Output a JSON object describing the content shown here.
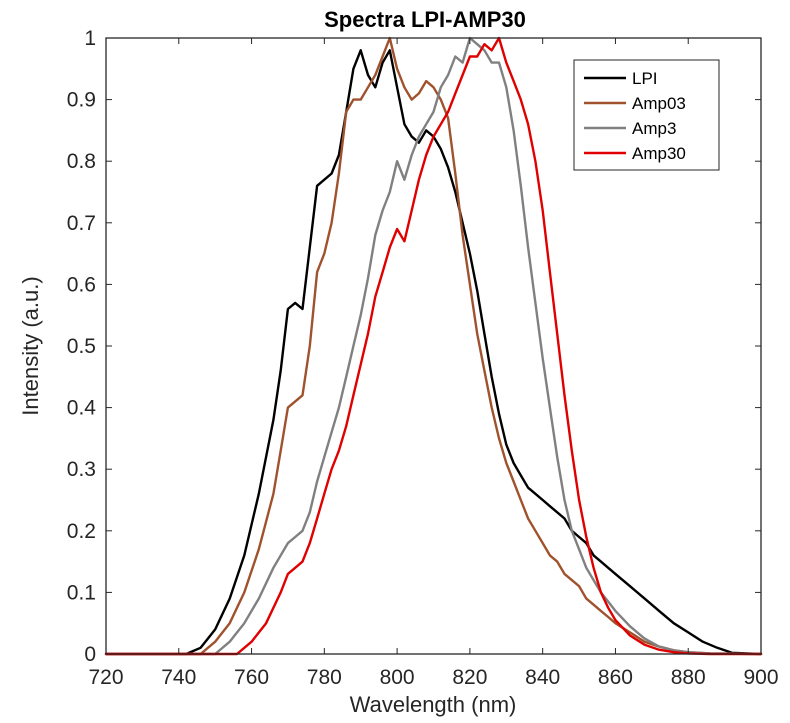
{
  "chart_data": {
    "type": "line",
    "title": "Spectra LPI-AMP30",
    "xlabel": "Wavelength (nm)",
    "ylabel": "Intensity (a.u.)",
    "xlim": [
      720,
      900
    ],
    "ylim": [
      0,
      1
    ],
    "xticks": [
      "720",
      "740",
      "760",
      "780",
      "800",
      "820",
      "840",
      "860",
      "880",
      "900"
    ],
    "yticks": [
      "0",
      "0.1",
      "0.2",
      "0.3",
      "0.4",
      "0.5",
      "0.6",
      "0.7",
      "0.8",
      "0.9",
      "1"
    ],
    "grid": false,
    "legend_position": "top-right",
    "series": [
      {
        "name": "LPI",
        "color": "#000000",
        "x": [
          720,
          742,
          746,
          750,
          754,
          758,
          762,
          766,
          768,
          770,
          772,
          774,
          776,
          778,
          780,
          782,
          784,
          786,
          788,
          790,
          792,
          794,
          796,
          798,
          800,
          802,
          804,
          806,
          808,
          810,
          812,
          814,
          816,
          818,
          820,
          822,
          824,
          826,
          828,
          830,
          832,
          834,
          836,
          838,
          840,
          842,
          844,
          846,
          848,
          850,
          852,
          854,
          856,
          858,
          860,
          864,
          868,
          872,
          876,
          880,
          884,
          888,
          892,
          900
        ],
        "y": [
          0,
          0,
          0.01,
          0.04,
          0.09,
          0.16,
          0.26,
          0.38,
          0.46,
          0.56,
          0.57,
          0.56,
          0.66,
          0.76,
          0.77,
          0.78,
          0.81,
          0.88,
          0.95,
          0.98,
          0.94,
          0.92,
          0.96,
          0.98,
          0.92,
          0.86,
          0.84,
          0.83,
          0.85,
          0.84,
          0.82,
          0.79,
          0.75,
          0.7,
          0.65,
          0.59,
          0.52,
          0.45,
          0.39,
          0.34,
          0.31,
          0.29,
          0.27,
          0.26,
          0.25,
          0.24,
          0.23,
          0.22,
          0.2,
          0.19,
          0.18,
          0.16,
          0.15,
          0.14,
          0.13,
          0.11,
          0.09,
          0.07,
          0.05,
          0.035,
          0.02,
          0.01,
          0.002,
          0
        ]
      },
      {
        "name": "Amp03",
        "color": "#a0522d",
        "x": [
          720,
          746,
          750,
          754,
          758,
          762,
          766,
          768,
          770,
          772,
          774,
          776,
          778,
          780,
          782,
          784,
          786,
          788,
          790,
          792,
          794,
          796,
          798,
          800,
          802,
          804,
          806,
          808,
          810,
          812,
          814,
          816,
          818,
          820,
          822,
          824,
          826,
          828,
          830,
          832,
          834,
          836,
          838,
          840,
          842,
          844,
          846,
          848,
          850,
          852,
          854,
          856,
          858,
          860,
          864,
          868,
          872,
          876,
          880,
          886,
          900
        ],
        "y": [
          0,
          0,
          0.02,
          0.05,
          0.1,
          0.17,
          0.26,
          0.33,
          0.4,
          0.41,
          0.42,
          0.5,
          0.62,
          0.65,
          0.7,
          0.78,
          0.88,
          0.9,
          0.9,
          0.92,
          0.94,
          0.97,
          1.0,
          0.95,
          0.92,
          0.9,
          0.91,
          0.93,
          0.92,
          0.9,
          0.87,
          0.78,
          0.68,
          0.6,
          0.52,
          0.46,
          0.4,
          0.35,
          0.31,
          0.28,
          0.25,
          0.22,
          0.2,
          0.18,
          0.16,
          0.15,
          0.13,
          0.12,
          0.11,
          0.09,
          0.08,
          0.07,
          0.06,
          0.05,
          0.035,
          0.02,
          0.012,
          0.006,
          0.003,
          0.001,
          0
        ]
      },
      {
        "name": "Amp3",
        "color": "#808080",
        "x": [
          720,
          750,
          754,
          758,
          762,
          766,
          770,
          772,
          774,
          776,
          778,
          780,
          782,
          784,
          786,
          788,
          790,
          792,
          794,
          796,
          798,
          800,
          802,
          804,
          806,
          808,
          810,
          812,
          814,
          816,
          818,
          820,
          822,
          824,
          826,
          828,
          830,
          832,
          834,
          836,
          838,
          840,
          842,
          844,
          846,
          848,
          850,
          852,
          854,
          856,
          858,
          860,
          864,
          868,
          872,
          876,
          880,
          886,
          900
        ],
        "y": [
          0,
          0,
          0.02,
          0.05,
          0.09,
          0.14,
          0.18,
          0.19,
          0.2,
          0.23,
          0.28,
          0.32,
          0.36,
          0.4,
          0.45,
          0.5,
          0.55,
          0.61,
          0.68,
          0.72,
          0.75,
          0.8,
          0.77,
          0.81,
          0.84,
          0.86,
          0.88,
          0.92,
          0.94,
          0.97,
          0.96,
          1.0,
          0.99,
          0.98,
          0.96,
          0.96,
          0.92,
          0.85,
          0.76,
          0.66,
          0.57,
          0.48,
          0.4,
          0.32,
          0.25,
          0.2,
          0.17,
          0.14,
          0.12,
          0.1,
          0.085,
          0.07,
          0.045,
          0.025,
          0.012,
          0.006,
          0.003,
          0.001,
          0
        ]
      },
      {
        "name": "Amp30",
        "color": "#e00000",
        "x": [
          720,
          756,
          760,
          764,
          768,
          770,
          772,
          774,
          776,
          778,
          780,
          782,
          784,
          786,
          788,
          790,
          792,
          794,
          796,
          798,
          800,
          802,
          804,
          806,
          808,
          810,
          812,
          814,
          816,
          818,
          820,
          822,
          824,
          826,
          828,
          830,
          832,
          834,
          836,
          838,
          840,
          842,
          844,
          846,
          848,
          850,
          852,
          854,
          856,
          858,
          860,
          864,
          868,
          872,
          876,
          880,
          886,
          900
        ],
        "y": [
          0,
          0,
          0.02,
          0.05,
          0.1,
          0.13,
          0.14,
          0.15,
          0.18,
          0.22,
          0.26,
          0.3,
          0.33,
          0.37,
          0.42,
          0.47,
          0.52,
          0.58,
          0.62,
          0.66,
          0.69,
          0.67,
          0.72,
          0.77,
          0.81,
          0.84,
          0.86,
          0.88,
          0.91,
          0.94,
          0.97,
          0.97,
          0.99,
          0.98,
          1.0,
          0.96,
          0.93,
          0.9,
          0.86,
          0.8,
          0.72,
          0.62,
          0.52,
          0.42,
          0.33,
          0.25,
          0.19,
          0.14,
          0.1,
          0.075,
          0.055,
          0.03,
          0.015,
          0.007,
          0.003,
          0.001,
          0,
          0
        ]
      }
    ]
  }
}
